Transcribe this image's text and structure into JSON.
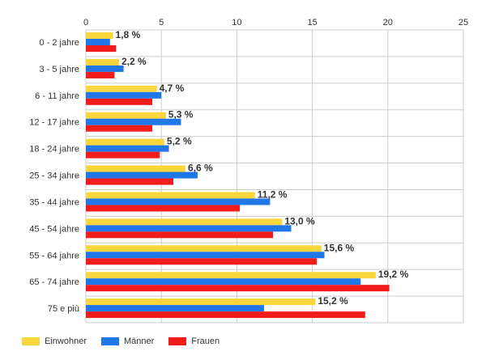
{
  "chart_data": {
    "type": "bar",
    "orientation": "horizontal",
    "categories": [
      "0 - 2 jahre",
      "3 - 5 jahre",
      "6 - 11 jahre",
      "12 - 17 jahre",
      "18 - 24 jahre",
      "25 - 34 jahre",
      "35 - 44 jahre",
      "45 - 54 jahre",
      "55 - 64 jahre",
      "65 - 74 jahre",
      "75 e più"
    ],
    "series": [
      {
        "name": "Einwohner",
        "color": "#f8d63c",
        "values": [
          1.8,
          2.2,
          4.7,
          5.3,
          5.2,
          6.6,
          11.2,
          13.0,
          15.6,
          19.2,
          15.2
        ]
      },
      {
        "name": "Männer",
        "color": "#1f77e8",
        "values": [
          1.6,
          2.5,
          5.0,
          6.3,
          5.5,
          7.4,
          12.2,
          13.6,
          15.8,
          18.2,
          11.8
        ]
      },
      {
        "name": "Frauen",
        "color": "#f21c1c",
        "values": [
          2.0,
          1.9,
          4.4,
          4.4,
          4.9,
          5.8,
          10.2,
          12.4,
          15.3,
          20.1,
          18.5
        ]
      }
    ],
    "data_labels": [
      "1,8 %",
      "2,2 %",
      "4,7 %",
      "5,3 %",
      "5,2 %",
      "6,6 %",
      "11,2 %",
      "13,0 %",
      "15,6 %",
      "19,2 %",
      "15,2 %"
    ],
    "xticks": [
      "0",
      "5",
      "10",
      "15",
      "20",
      "25"
    ],
    "xlim": [
      0,
      25
    ],
    "title": "",
    "xlabel": "",
    "ylabel": "",
    "grid": true,
    "legend_position": "bottom-left"
  }
}
